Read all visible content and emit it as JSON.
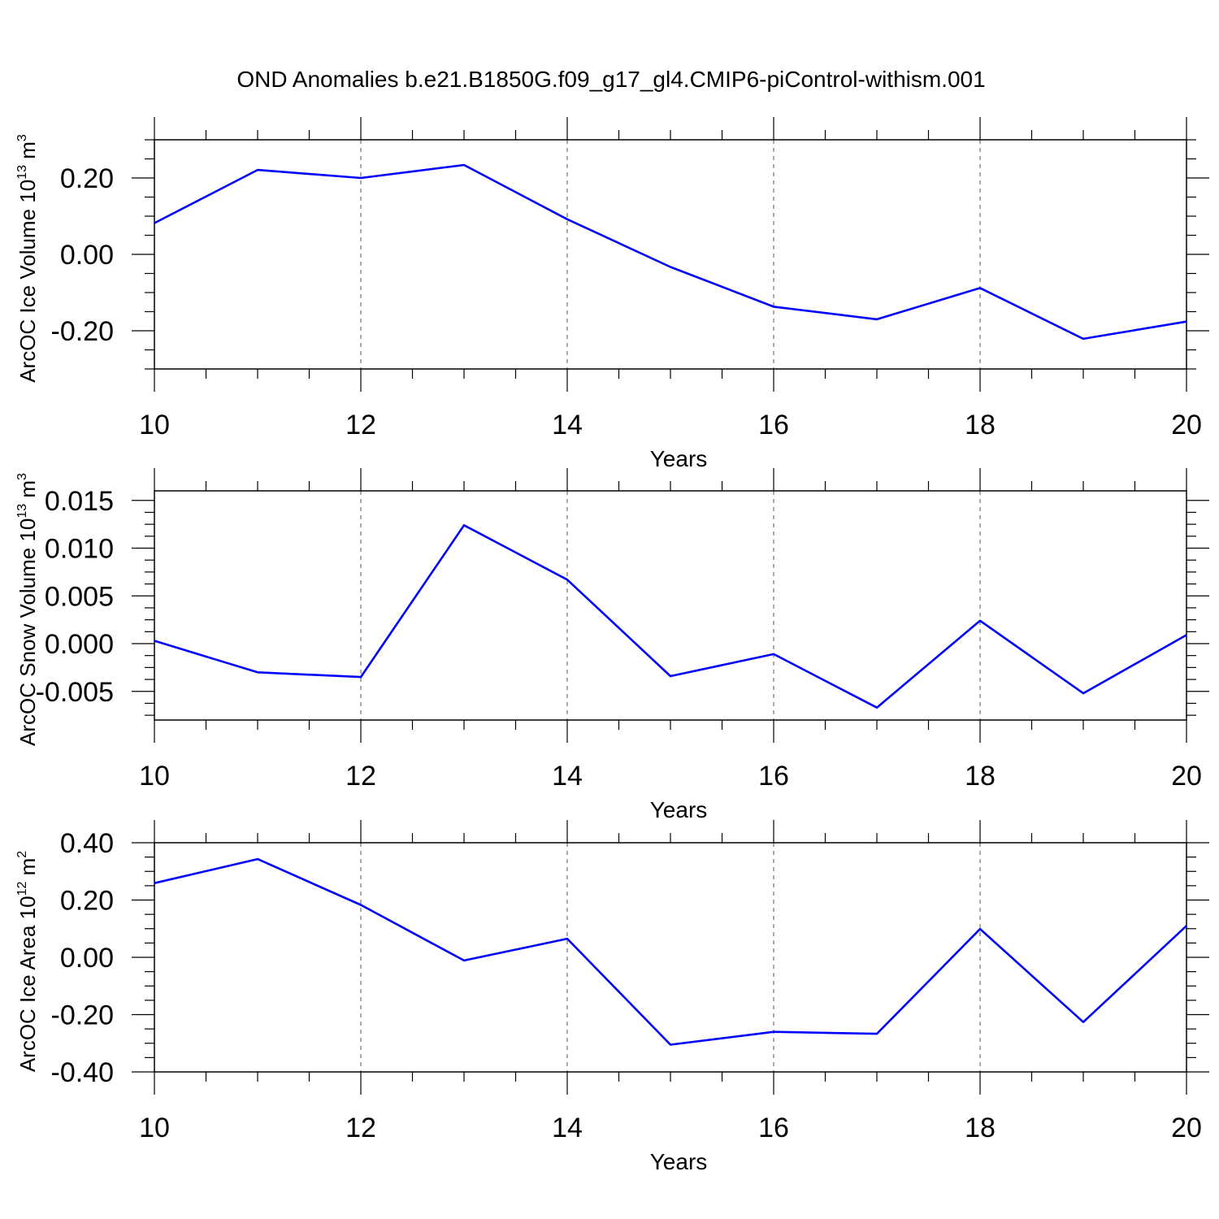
{
  "title": "OND Anomalies b.e21.B1850G.f09_g17_gl4.CMIP6-piControl-withism.001",
  "colors": {
    "series": "#0000ff"
  },
  "chart_data": [
    {
      "type": "line",
      "ylabel_main": "ArcOC Ice Volume 10",
      "ylabel_sup": "13",
      "ylabel_unit": "m",
      "ylabel_unit_sup": "3",
      "xlabel": "Years",
      "xlim": [
        10,
        20
      ],
      "ylim": [
        -0.3,
        0.3
      ],
      "xticks": [
        10,
        12,
        14,
        16,
        18,
        20
      ],
      "xtick_labels": [
        "10",
        "12",
        "14",
        "16",
        "18",
        "20"
      ],
      "yticks": [
        -0.2,
        0.0,
        0.2
      ],
      "ytick_labels": [
        "-0.20",
        "0.00",
        "0.20"
      ],
      "grid_x": true,
      "x": [
        10,
        11,
        12,
        13,
        14,
        15,
        16,
        17,
        18,
        19,
        20
      ],
      "values": [
        0.082,
        0.221,
        0.2,
        0.234,
        0.092,
        -0.033,
        -0.137,
        -0.17,
        -0.088,
        -0.221,
        -0.176
      ]
    },
    {
      "type": "line",
      "ylabel_main": "ArcOC Snow Volume 10",
      "ylabel_sup": "13",
      "ylabel_unit": "m",
      "ylabel_unit_sup": "3",
      "xlabel": "Years",
      "xlim": [
        10,
        20
      ],
      "ylim": [
        -0.008,
        0.016
      ],
      "xticks": [
        10,
        12,
        14,
        16,
        18,
        20
      ],
      "xtick_labels": [
        "10",
        "12",
        "14",
        "16",
        "18",
        "20"
      ],
      "yticks": [
        -0.005,
        0.0,
        0.005,
        0.01,
        0.015
      ],
      "ytick_labels": [
        "-0.005",
        "0.000",
        "0.005",
        "0.010",
        "0.015"
      ],
      "grid_x": true,
      "x": [
        10,
        11,
        12,
        13,
        14,
        15,
        16,
        17,
        18,
        19,
        20
      ],
      "values": [
        0.0003,
        -0.003,
        -0.0035,
        0.0124,
        0.0067,
        -0.0034,
        -0.0011,
        -0.0067,
        0.0024,
        -0.0052,
        0.0009
      ]
    },
    {
      "type": "line",
      "ylabel_main": "ArcOC Ice Area 10",
      "ylabel_sup": "12",
      "ylabel_unit": "m",
      "ylabel_unit_sup": "2",
      "xlabel": "Years",
      "xlim": [
        10,
        20
      ],
      "ylim": [
        -0.4,
        0.4
      ],
      "xticks": [
        10,
        12,
        14,
        16,
        18,
        20
      ],
      "xtick_labels": [
        "10",
        "12",
        "14",
        "16",
        "18",
        "20"
      ],
      "yticks": [
        -0.4,
        -0.2,
        0.0,
        0.2,
        0.4
      ],
      "ytick_labels": [
        "-0.40",
        "-0.20",
        "0.00",
        "0.20",
        "0.40"
      ],
      "grid_x": true,
      "x": [
        10,
        11,
        12,
        13,
        14,
        15,
        16,
        17,
        18,
        19,
        20
      ],
      "values": [
        0.259,
        0.343,
        0.183,
        -0.011,
        0.065,
        -0.305,
        -0.26,
        -0.267,
        0.099,
        -0.226,
        0.11
      ]
    }
  ]
}
